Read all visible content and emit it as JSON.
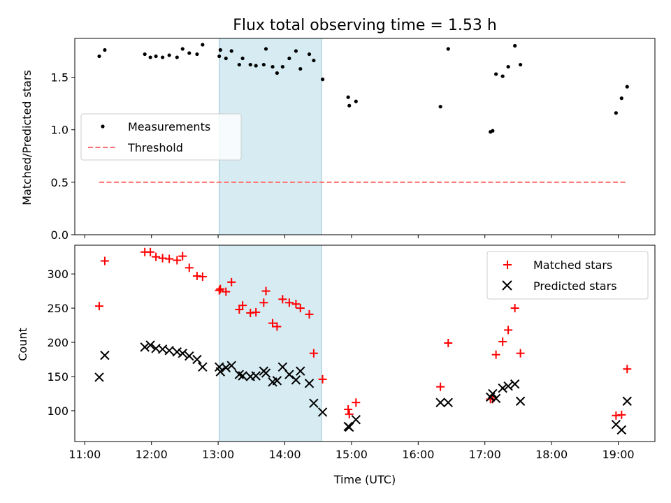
{
  "chart_data": [
    {
      "type": "scatter",
      "title": "Flux total observing time = 1.53 h",
      "xlabel": "",
      "ylabel": "Matched/Predicted stars",
      "xlim": [
        "10:51",
        "19:33"
      ],
      "ylim": [
        0,
        1.87
      ],
      "yticks": [
        0.0,
        0.5,
        1.0,
        1.5
      ],
      "yticklabels": [
        "0.0",
        "0.5",
        "1.0",
        "1.5"
      ],
      "legend_position": "center-left",
      "shaded_span": [
        "13:01",
        "14:33"
      ],
      "shade_color": "#add8e6",
      "series": [
        {
          "name": "Measurements",
          "color": "#000000",
          "marker": "dot",
          "points": [
            [
              "11:13",
              1.7
            ],
            [
              "11:18",
              1.76
            ],
            [
              "11:54",
              1.72
            ],
            [
              "11:59",
              1.69
            ],
            [
              "12:04",
              1.7
            ],
            [
              "12:10",
              1.69
            ],
            [
              "12:16",
              1.71
            ],
            [
              "12:23",
              1.69
            ],
            [
              "12:28",
              1.77
            ],
            [
              "12:34",
              1.73
            ],
            [
              "12:41",
              1.72
            ],
            [
              "12:46",
              1.81
            ],
            [
              "13:01",
              1.7
            ],
            [
              "13:02",
              1.76
            ],
            [
              "13:07",
              1.68
            ],
            [
              "13:12",
              1.75
            ],
            [
              "13:19",
              1.62
            ],
            [
              "13:22",
              1.68
            ],
            [
              "13:29",
              1.62
            ],
            [
              "13:34",
              1.61
            ],
            [
              "13:41",
              1.62
            ],
            [
              "13:43",
              1.77
            ],
            [
              "13:49",
              1.6
            ],
            [
              "13:53",
              1.54
            ],
            [
              "13:58",
              1.6
            ],
            [
              "14:04",
              1.68
            ],
            [
              "14:10",
              1.75
            ],
            [
              "14:14",
              1.58
            ],
            [
              "14:22",
              1.72
            ],
            [
              "14:26",
              1.66
            ],
            [
              "14:34",
              1.48
            ],
            [
              "14:57",
              1.31
            ],
            [
              "14:58",
              1.23
            ],
            [
              "15:04",
              1.27
            ],
            [
              "16:20",
              1.22
            ],
            [
              "16:27",
              1.77
            ],
            [
              "17:05",
              0.98
            ],
            [
              "17:07",
              0.99
            ],
            [
              "17:10",
              1.53
            ],
            [
              "17:16",
              1.51
            ],
            [
              "17:21",
              1.6
            ],
            [
              "17:27",
              1.8
            ],
            [
              "17:32",
              1.62
            ],
            [
              "18:58",
              1.16
            ],
            [
              "19:03",
              1.3
            ],
            [
              "19:08",
              1.41
            ]
          ]
        },
        {
          "name": "Threshold",
          "color": "#ff6f6f",
          "style": "dashed",
          "points": [
            [
              "11:13",
              0.5
            ],
            [
              "19:08",
              0.5
            ]
          ]
        }
      ]
    },
    {
      "type": "scatter",
      "title": "",
      "xlabel": "Time (UTC)",
      "ylabel": "Count",
      "xlim": [
        "10:51",
        "19:33"
      ],
      "ylim": [
        55,
        342
      ],
      "xticks": [
        "11:00",
        "12:00",
        "13:00",
        "14:00",
        "15:00",
        "16:00",
        "17:00",
        "18:00",
        "19:00"
      ],
      "yticks": [
        100,
        150,
        200,
        250,
        300
      ],
      "legend_position": "top-right",
      "shaded_span": [
        "13:01",
        "14:33"
      ],
      "shade_color": "#add8e6",
      "series": [
        {
          "name": "Matched stars",
          "color": "#ff0000",
          "marker": "plus",
          "points": [
            [
              "11:13",
              253
            ],
            [
              "11:18",
              319
            ],
            [
              "11:54",
              332
            ],
            [
              "11:59",
              332
            ],
            [
              "12:04",
              325
            ],
            [
              "12:10",
              323
            ],
            [
              "12:16",
              322
            ],
            [
              "12:23",
              320
            ],
            [
              "12:28",
              326
            ],
            [
              "12:34",
              309
            ],
            [
              "12:41",
              297
            ],
            [
              "12:46",
              296
            ],
            [
              "13:01",
              276
            ],
            [
              "13:02",
              278
            ],
            [
              "13:07",
              274
            ],
            [
              "13:12",
              288
            ],
            [
              "13:19",
              248
            ],
            [
              "13:22",
              254
            ],
            [
              "13:29",
              243
            ],
            [
              "13:34",
              244
            ],
            [
              "13:41",
              258
            ],
            [
              "13:43",
              275
            ],
            [
              "13:49",
              228
            ],
            [
              "13:53",
              223
            ],
            [
              "13:58",
              263
            ],
            [
              "14:04",
              258
            ],
            [
              "14:10",
              256
            ],
            [
              "14:14",
              250
            ],
            [
              "14:22",
              241
            ],
            [
              "14:26",
              184
            ],
            [
              "14:34",
              146
            ],
            [
              "14:57",
              102
            ],
            [
              "14:58",
              95
            ],
            [
              "15:04",
              112
            ],
            [
              "16:20",
              135
            ],
            [
              "16:27",
              199
            ],
            [
              "17:05",
              117
            ],
            [
              "17:07",
              117
            ],
            [
              "17:10",
              182
            ],
            [
              "17:16",
              201
            ],
            [
              "17:21",
              218
            ],
            [
              "17:27",
              250
            ],
            [
              "17:32",
              184
            ],
            [
              "18:58",
              93
            ],
            [
              "19:03",
              94
            ],
            [
              "19:08",
              161
            ]
          ]
        },
        {
          "name": "Predicted stars",
          "color": "#000000",
          "marker": "x",
          "points": [
            [
              "11:13",
              149
            ],
            [
              "11:18",
              181
            ],
            [
              "11:54",
              193
            ],
            [
              "11:59",
              196
            ],
            [
              "12:04",
              191
            ],
            [
              "12:10",
              190
            ],
            [
              "12:16",
              188
            ],
            [
              "12:23",
              186
            ],
            [
              "12:28",
              184
            ],
            [
              "12:34",
              180
            ],
            [
              "12:41",
              175
            ],
            [
              "12:46",
              164
            ],
            [
              "13:01",
              164
            ],
            [
              "13:02",
              157
            ],
            [
              "13:07",
              163
            ],
            [
              "13:12",
              166
            ],
            [
              "13:19",
              153
            ],
            [
              "13:22",
              151
            ],
            [
              "13:29",
              150
            ],
            [
              "13:34",
              151
            ],
            [
              "13:41",
              158
            ],
            [
              "13:43",
              155
            ],
            [
              "13:49",
              142
            ],
            [
              "13:53",
              144
            ],
            [
              "13:58",
              164
            ],
            [
              "14:04",
              153
            ],
            [
              "14:10",
              145
            ],
            [
              "14:14",
              158
            ],
            [
              "14:22",
              140
            ],
            [
              "14:26",
              111
            ],
            [
              "14:34",
              98
            ],
            [
              "14:57",
              77
            ],
            [
              "14:58",
              76
            ],
            [
              "15:04",
              87
            ],
            [
              "16:20",
              112
            ],
            [
              "16:27",
              112
            ],
            [
              "17:05",
              120
            ],
            [
              "17:07",
              125
            ],
            [
              "17:10",
              118
            ],
            [
              "17:16",
              133
            ],
            [
              "17:21",
              136
            ],
            [
              "17:27",
              139
            ],
            [
              "17:32",
              114
            ],
            [
              "18:58",
              80
            ],
            [
              "19:03",
              72
            ],
            [
              "19:08",
              114
            ]
          ]
        }
      ]
    }
  ]
}
